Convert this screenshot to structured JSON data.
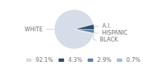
{
  "chart_data": {
    "type": "pie",
    "categories": [
      "WHITE",
      "A.I.",
      "HISPANIC",
      "BLACK"
    ],
    "values": [
      92.1,
      4.3,
      2.9,
      0.7
    ],
    "value_labels": [
      "92.1%",
      "4.3%",
      "2.9%",
      "0.7%"
    ],
    "colors": [
      "#d6dde8",
      "#2d4f6e",
      "#5b7fa6",
      "#aabccc"
    ],
    "legend": "bottom"
  }
}
